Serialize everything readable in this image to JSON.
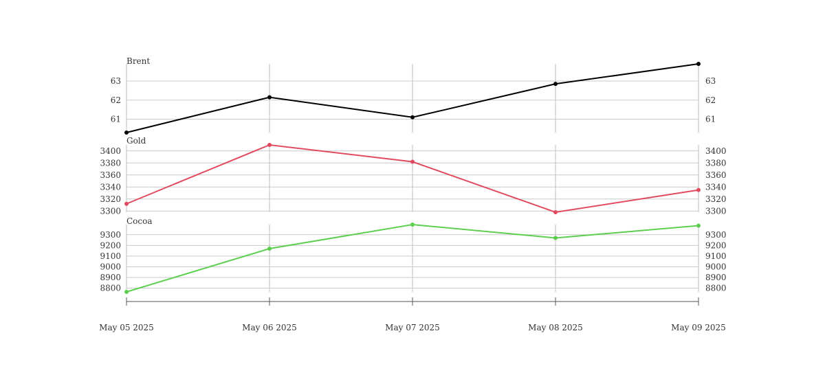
{
  "chart_data": {
    "type": "line",
    "x": [
      "May 05 2025",
      "May 06 2025",
      "May 07 2025",
      "May 08 2025",
      "May 09 2025"
    ],
    "panels": [
      {
        "name": "Brent",
        "color": "#000000",
        "values": [
          60.3,
          62.15,
          61.1,
          62.85,
          63.9
        ],
        "ylim": [
          60.3,
          63.9
        ],
        "yticks": [
          61,
          62,
          63
        ],
        "grid": true
      },
      {
        "name": "Gold",
        "color": "#e04b5f",
        "values": [
          3312,
          3410,
          3382,
          3298,
          3335
        ],
        "ylim": [
          3298,
          3410
        ],
        "yticks": [
          3300,
          3320,
          3340,
          3360,
          3380,
          3400
        ],
        "grid": true
      },
      {
        "name": "Cocoa",
        "color": "#5ccf4e",
        "values": [
          8765,
          9170,
          9395,
          9270,
          9385
        ],
        "ylim": [
          8765,
          9395
        ],
        "yticks": [
          8800,
          8900,
          9000,
          9100,
          9200,
          9300
        ],
        "grid": true
      }
    ],
    "legend": "none"
  }
}
